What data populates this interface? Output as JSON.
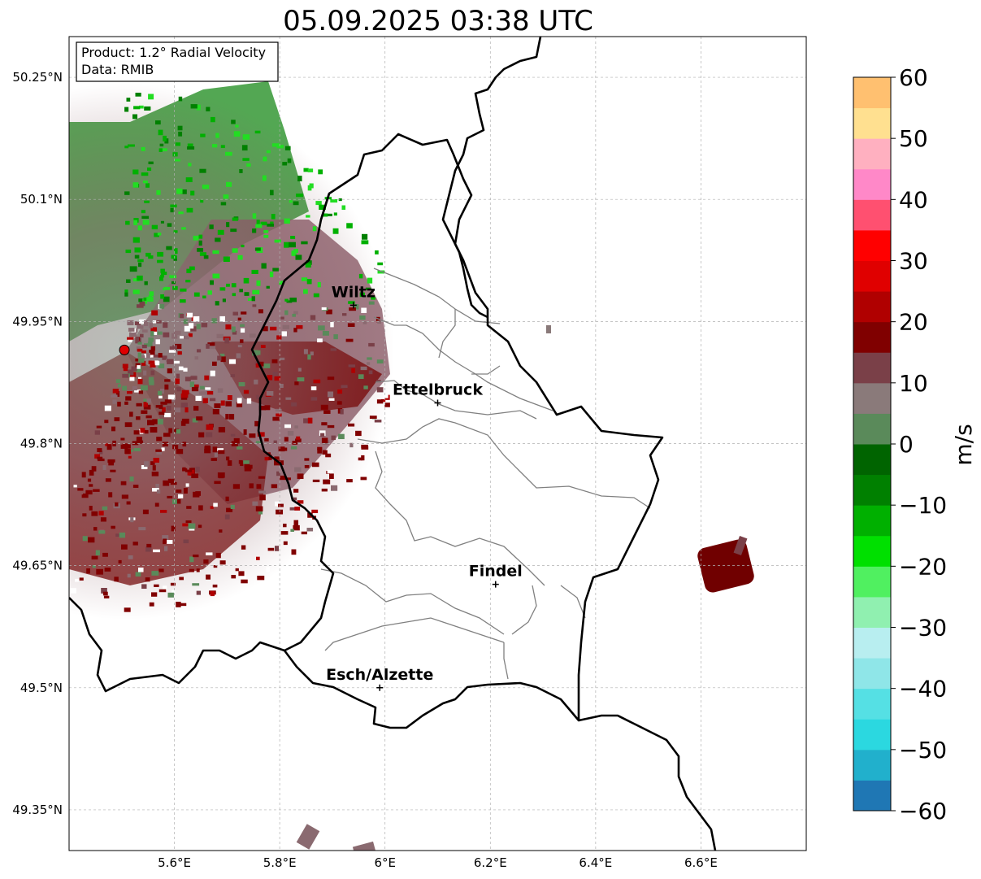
{
  "title": "05.09.2025 03:38 UTC",
  "info": {
    "product": "Product: 1.2° Radial Velocity",
    "source": "Data: RMIB"
  },
  "map": {
    "lon_range": [
      5.4,
      6.8
    ],
    "lat_range": [
      49.3,
      50.3
    ],
    "lon_ticks": [
      5.6,
      5.8,
      6.0,
      6.2,
      6.4,
      6.6
    ],
    "lat_ticks": [
      49.35,
      49.5,
      49.65,
      49.8,
      49.95,
      50.1,
      50.25
    ],
    "lon_tick_labels": [
      "5.6°E",
      "5.8°E",
      "6°E",
      "6.2°E",
      "6.4°E",
      "6.6°E"
    ],
    "lat_tick_labels": [
      "49.35°N",
      "49.5°N",
      "49.65°N",
      "49.8°N",
      "49.95°N",
      "50.1°N",
      "50.25°N"
    ],
    "grid": true,
    "radar_site": {
      "lon": 5.505,
      "lat": 49.915
    },
    "cities": [
      {
        "name": "Wiltz",
        "lon": 5.94,
        "lat": 49.97
      },
      {
        "name": "Ettelbruck",
        "lon": 6.1,
        "lat": 49.85
      },
      {
        "name": "Findel",
        "lon": 6.21,
        "lat": 49.627
      },
      {
        "name": "Esch/Alzette",
        "lon": 5.99,
        "lat": 49.5
      }
    ]
  },
  "colorbar": {
    "label": "m/s",
    "min": -60,
    "max": 60,
    "tick_values": [
      60,
      50,
      40,
      30,
      20,
      10,
      0,
      -10,
      -20,
      -30,
      -40,
      -50,
      -60
    ],
    "tick_labels": [
      "60",
      "50",
      "40",
      "30",
      "20",
      "10",
      "0",
      "−10",
      "−20",
      "−30",
      "−40",
      "−50",
      "−60"
    ],
    "colors": {
      "-60": "#1f77b4",
      "-55": "#21b0cc",
      "-50": "#2bd8e0",
      "-45": "#55e0e4",
      "-40": "#8fe6e8",
      "-35": "#b8eef0",
      "-30": "#90f0b0",
      "-25": "#50f060",
      "-20": "#00e000",
      "-15": "#00b000",
      "-10": "#008000",
      "-5": "#006400",
      "0": "#5a8a5a",
      "5": "#8a7a7a",
      "10": "#7a4048",
      "15": "#800000",
      "20": "#b00000",
      "25": "#e00000",
      "30": "#ff0000",
      "35": "#ff5070",
      "40": "#ff88c8",
      "45": "#ffb0c0",
      "50": "#ffe090",
      "55": "#ffc070",
      "60": "#ffa050"
    }
  }
}
